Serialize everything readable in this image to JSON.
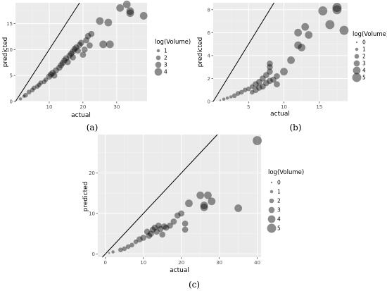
{
  "chart_data": [
    {
      "type": "scatter",
      "caption": "(a)",
      "xlabel": "actual",
      "ylabel": "predicted",
      "xlim": [
        0,
        39
      ],
      "ylim": [
        0,
        19
      ],
      "xticks": [
        10,
        20,
        30
      ],
      "yticks": [
        0,
        5,
        10,
        15
      ],
      "reference_line": "y = x",
      "grid": true,
      "legend": {
        "title": "log(Volume)",
        "position": "right",
        "levels": [
          1,
          2,
          3,
          4
        ]
      },
      "points": [
        {
          "x": 1.5,
          "y": 0.5,
          "v": 1
        },
        {
          "x": 2.5,
          "y": 1.0,
          "v": 1
        },
        {
          "x": 3.0,
          "y": 1.2,
          "v": 2
        },
        {
          "x": 4.0,
          "y": 1.8,
          "v": 2
        },
        {
          "x": 5.0,
          "y": 2.2,
          "v": 2
        },
        {
          "x": 5.5,
          "y": 2.6,
          "v": 2
        },
        {
          "x": 6.5,
          "y": 2.9,
          "v": 2
        },
        {
          "x": 7.0,
          "y": 3.2,
          "v": 2
        },
        {
          "x": 7.5,
          "y": 3.6,
          "v": 2
        },
        {
          "x": 8.5,
          "y": 3.8,
          "v": 2
        },
        {
          "x": 9.0,
          "y": 4.2,
          "v": 2
        },
        {
          "x": 10.0,
          "y": 4.8,
          "v": 3
        },
        {
          "x": 10.5,
          "y": 5.2,
          "v": 3
        },
        {
          "x": 11.0,
          "y": 5.5,
          "v": 3
        },
        {
          "x": 11.5,
          "y": 5.0,
          "v": 3
        },
        {
          "x": 12.0,
          "y": 6.0,
          "v": 3
        },
        {
          "x": 13.0,
          "y": 6.5,
          "v": 3
        },
        {
          "x": 13.5,
          "y": 7.0,
          "v": 3
        },
        {
          "x": 14.0,
          "y": 7.4,
          "v": 3
        },
        {
          "x": 14.5,
          "y": 7.9,
          "v": 3
        },
        {
          "x": 15.0,
          "y": 8.3,
          "v": 3
        },
        {
          "x": 15.5,
          "y": 7.6,
          "v": 3
        },
        {
          "x": 16.0,
          "y": 8.8,
          "v": 3
        },
        {
          "x": 16.5,
          "y": 9.2,
          "v": 3
        },
        {
          "x": 17.0,
          "y": 8.5,
          "v": 3
        },
        {
          "x": 17.0,
          "y": 9.6,
          "v": 3
        },
        {
          "x": 17.5,
          "y": 10.1,
          "v": 3
        },
        {
          "x": 18.0,
          "y": 10.4,
          "v": 3
        },
        {
          "x": 18.5,
          "y": 9.8,
          "v": 3
        },
        {
          "x": 19.0,
          "y": 10.9,
          "v": 3
        },
        {
          "x": 19.5,
          "y": 11.3,
          "v": 3
        },
        {
          "x": 20.0,
          "y": 9.0,
          "v": 3
        },
        {
          "x": 20.5,
          "y": 10.0,
          "v": 3
        },
        {
          "x": 21.0,
          "y": 11.8,
          "v": 3
        },
        {
          "x": 21.5,
          "y": 12.6,
          "v": 3
        },
        {
          "x": 22.5,
          "y": 13.0,
          "v": 3
        },
        {
          "x": 22.0,
          "y": 10.8,
          "v": 3
        },
        {
          "x": 25.0,
          "y": 15.5,
          "v": 4
        },
        {
          "x": 26.0,
          "y": 11.0,
          "v": 4
        },
        {
          "x": 27.5,
          "y": 15.2,
          "v": 4
        },
        {
          "x": 28.0,
          "y": 11.0,
          "v": 4
        },
        {
          "x": 31.0,
          "y": 18.0,
          "v": 4
        },
        {
          "x": 33.0,
          "y": 18.7,
          "v": 4
        },
        {
          "x": 34.0,
          "y": 17.0,
          "v": 4
        },
        {
          "x": 34.0,
          "y": 17.4,
          "v": 4
        },
        {
          "x": 38.0,
          "y": 16.5,
          "v": 4
        }
      ]
    },
    {
      "type": "scatter",
      "caption": "(b)",
      "xlabel": "actual",
      "ylabel": "predicted",
      "xlim": [
        0,
        19
      ],
      "ylim": [
        0,
        8.6
      ],
      "xticks": [
        5,
        10,
        15
      ],
      "yticks": [
        0,
        2,
        4,
        6,
        8
      ],
      "reference_line": "y = x",
      "grid": true,
      "legend": {
        "title": "log(Volume)",
        "position": "right",
        "levels": [
          0,
          1,
          2,
          3,
          4,
          5
        ]
      },
      "points": [
        {
          "x": 1.0,
          "y": 0.1,
          "v": 0
        },
        {
          "x": 1.5,
          "y": 0.2,
          "v": 1
        },
        {
          "x": 2.0,
          "y": 0.3,
          "v": 1
        },
        {
          "x": 2.5,
          "y": 0.4,
          "v": 1
        },
        {
          "x": 3.0,
          "y": 0.5,
          "v": 2
        },
        {
          "x": 3.5,
          "y": 0.7,
          "v": 2
        },
        {
          "x": 4.0,
          "y": 0.8,
          "v": 2
        },
        {
          "x": 4.5,
          "y": 1.0,
          "v": 2
        },
        {
          "x": 5.0,
          "y": 1.1,
          "v": 2
        },
        {
          "x": 5.5,
          "y": 1.3,
          "v": 2
        },
        {
          "x": 5.5,
          "y": 0.8,
          "v": 2
        },
        {
          "x": 6.0,
          "y": 1.5,
          "v": 3
        },
        {
          "x": 6.0,
          "y": 1.0,
          "v": 3
        },
        {
          "x": 6.5,
          "y": 1.7,
          "v": 3
        },
        {
          "x": 6.5,
          "y": 1.2,
          "v": 3
        },
        {
          "x": 7.0,
          "y": 2.0,
          "v": 3
        },
        {
          "x": 7.0,
          "y": 1.3,
          "v": 3
        },
        {
          "x": 7.5,
          "y": 2.3,
          "v": 3
        },
        {
          "x": 7.5,
          "y": 1.6,
          "v": 3
        },
        {
          "x": 8.0,
          "y": 2.6,
          "v": 3
        },
        {
          "x": 8.0,
          "y": 3.0,
          "v": 3
        },
        {
          "x": 8.0,
          "y": 3.3,
          "v": 3
        },
        {
          "x": 8.0,
          "y": 1.8,
          "v": 3
        },
        {
          "x": 8.5,
          "y": 1.9,
          "v": 3
        },
        {
          "x": 9.0,
          "y": 2.2,
          "v": 3
        },
        {
          "x": 9.0,
          "y": 1.5,
          "v": 3
        },
        {
          "x": 10.0,
          "y": 2.6,
          "v": 4
        },
        {
          "x": 11.0,
          "y": 3.6,
          "v": 4
        },
        {
          "x": 12.0,
          "y": 4.9,
          "v": 4
        },
        {
          "x": 12.0,
          "y": 6.0,
          "v": 4
        },
        {
          "x": 12.5,
          "y": 4.7,
          "v": 4
        },
        {
          "x": 13.0,
          "y": 6.5,
          "v": 4
        },
        {
          "x": 13.5,
          "y": 5.8,
          "v": 4
        },
        {
          "x": 15.5,
          "y": 7.9,
          "v": 5
        },
        {
          "x": 16.5,
          "y": 6.7,
          "v": 5
        },
        {
          "x": 17.5,
          "y": 8.0,
          "v": 5
        },
        {
          "x": 17.5,
          "y": 8.2,
          "v": 5
        },
        {
          "x": 18.5,
          "y": 6.2,
          "v": 5
        }
      ]
    },
    {
      "type": "scatter",
      "caption": "(c)",
      "xlabel": "actual",
      "ylabel": "predicted",
      "xlim": [
        -2,
        41
      ],
      "ylim": [
        -0.8,
        29.5
      ],
      "xticks": [
        0,
        10,
        20,
        30,
        40
      ],
      "yticks": [
        0,
        10,
        20
      ],
      "reference_line": "y = x",
      "grid": true,
      "legend": {
        "title": "log(Volume)",
        "position": "right",
        "levels": [
          0,
          1,
          2,
          3,
          4,
          5
        ]
      },
      "points": [
        {
          "x": 1.0,
          "y": 0.2,
          "v": 0
        },
        {
          "x": 2.0,
          "y": 0.5,
          "v": 1
        },
        {
          "x": 4.0,
          "y": 1.0,
          "v": 2
        },
        {
          "x": 5.0,
          "y": 1.3,
          "v": 2
        },
        {
          "x": 6.0,
          "y": 1.8,
          "v": 2
        },
        {
          "x": 7.0,
          "y": 2.2,
          "v": 2
        },
        {
          "x": 8.0,
          "y": 3.0,
          "v": 2
        },
        {
          "x": 9.0,
          "y": 3.6,
          "v": 3
        },
        {
          "x": 10.0,
          "y": 4.0,
          "v": 3
        },
        {
          "x": 11.0,
          "y": 5.5,
          "v": 3
        },
        {
          "x": 11.5,
          "y": 4.5,
          "v": 3
        },
        {
          "x": 12.0,
          "y": 5.0,
          "v": 3
        },
        {
          "x": 12.5,
          "y": 6.0,
          "v": 3
        },
        {
          "x": 13.0,
          "y": 6.5,
          "v": 3
        },
        {
          "x": 13.5,
          "y": 5.5,
          "v": 3
        },
        {
          "x": 14.0,
          "y": 7.0,
          "v": 3
        },
        {
          "x": 14.5,
          "y": 6.2,
          "v": 3
        },
        {
          "x": 15.0,
          "y": 4.8,
          "v": 3
        },
        {
          "x": 15.5,
          "y": 6.8,
          "v": 3
        },
        {
          "x": 16.0,
          "y": 6.5,
          "v": 3
        },
        {
          "x": 17.0,
          "y": 7.0,
          "v": 3
        },
        {
          "x": 18.0,
          "y": 8.0,
          "v": 3
        },
        {
          "x": 19.0,
          "y": 9.5,
          "v": 3
        },
        {
          "x": 20.0,
          "y": 10.0,
          "v": 3
        },
        {
          "x": 21.0,
          "y": 7.5,
          "v": 3
        },
        {
          "x": 21.0,
          "y": 6.0,
          "v": 3
        },
        {
          "x": 22.0,
          "y": 12.5,
          "v": 4
        },
        {
          "x": 25.0,
          "y": 14.5,
          "v": 4
        },
        {
          "x": 26.0,
          "y": 11.5,
          "v": 4
        },
        {
          "x": 26.0,
          "y": 12.0,
          "v": 4
        },
        {
          "x": 27.0,
          "y": 14.5,
          "v": 4
        },
        {
          "x": 28.0,
          "y": 13.0,
          "v": 4
        },
        {
          "x": 35.0,
          "y": 11.3,
          "v": 4
        },
        {
          "x": 40.0,
          "y": 28.0,
          "v": 5
        }
      ]
    }
  ]
}
